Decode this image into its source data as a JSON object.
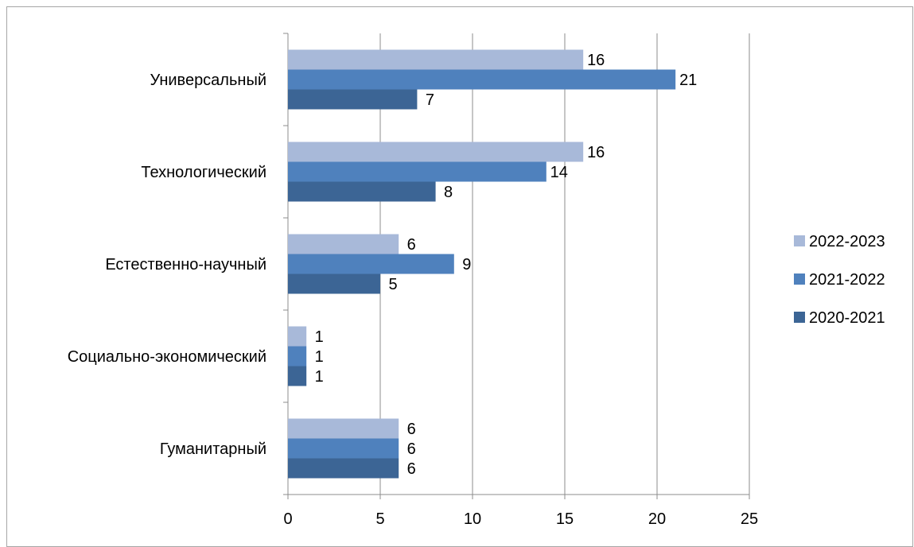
{
  "chart_data": {
    "type": "bar",
    "orientation": "horizontal",
    "categories": [
      "Универсальный",
      "Технологический",
      "Естественно-научный",
      "Социально-экономический",
      "Гуманитарный"
    ],
    "series": [
      {
        "name": "2022-2023",
        "values": [
          16,
          16,
          6,
          1,
          6
        ],
        "color": "#a8b9d9"
      },
      {
        "name": "2021-2022",
        "values": [
          21,
          14,
          9,
          1,
          6
        ],
        "color": "#4f81bd"
      },
      {
        "name": "2020-2021",
        "values": [
          7,
          8,
          5,
          1,
          6
        ],
        "color": "#3c6595"
      }
    ],
    "x_ticks": [
      "0",
      "5",
      "10",
      "15",
      "20",
      "25"
    ],
    "xlim": [
      0,
      25
    ],
    "grid": "vertical",
    "legend_position": "right",
    "title": "",
    "xlabel": "",
    "ylabel": ""
  }
}
